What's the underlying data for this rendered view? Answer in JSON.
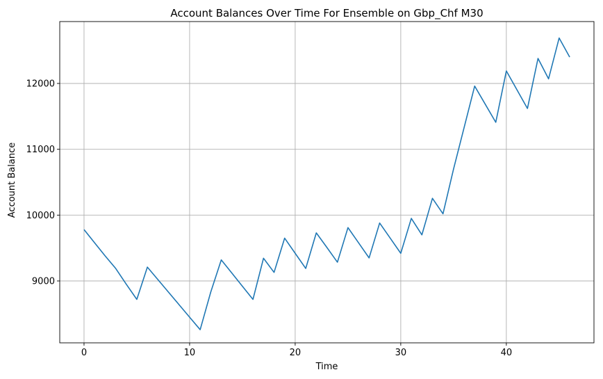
{
  "chart_data": {
    "type": "line",
    "title": "Account Balances Over Time For Ensemble on Gbp_Chf M30",
    "xlabel": "Time",
    "ylabel": "Account Balance",
    "xlim": [
      -2.3,
      48.3
    ],
    "ylim": [
      8060,
      12940
    ],
    "xticks": [
      0,
      10,
      20,
      30,
      40
    ],
    "yticks": [
      9000,
      10000,
      11000,
      12000
    ],
    "grid": true,
    "series": [
      {
        "color": "#1f77b4",
        "x": [
          0,
          1,
          2,
          3,
          4,
          5,
          6,
          7,
          8,
          9,
          10,
          11,
          12,
          13,
          14,
          15,
          16,
          17,
          18,
          19,
          20,
          21,
          22,
          23,
          24,
          25,
          26,
          27,
          28,
          29,
          30,
          31,
          32,
          33,
          34,
          35,
          36,
          37,
          38,
          39,
          40,
          41,
          42,
          43,
          44,
          45,
          46
        ],
        "y": [
          9780,
          9580,
          9380,
          9190,
          8950,
          8720,
          9210,
          9020,
          8830,
          8640,
          8450,
          8260,
          8830,
          9320,
          9120,
          8920,
          8720,
          9345,
          9130,
          9650,
          9420,
          9190,
          9730,
          9510,
          9285,
          9810,
          9580,
          9350,
          9880,
          9650,
          9420,
          9950,
          9700,
          10255,
          10020,
          10700,
          11330,
          11960,
          11685,
          11410,
          12190,
          11905,
          11620,
          12380,
          12070,
          12690,
          12400
        ]
      }
    ]
  }
}
